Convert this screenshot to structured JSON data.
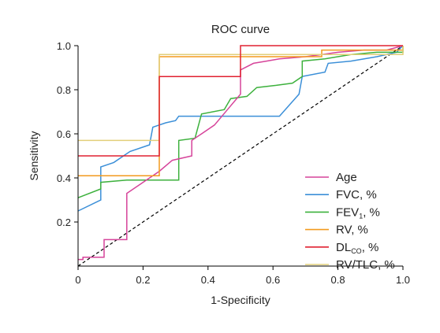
{
  "chart_data": {
    "type": "line",
    "title": "ROC curve",
    "xlabel": "1-Specificity",
    "ylabel": "Sensitivity",
    "xlim": [
      0,
      1
    ],
    "ylim": [
      0,
      1
    ],
    "xticks": [
      "0",
      "0.2",
      "0.4",
      "0.6",
      "0.8",
      "1.0"
    ],
    "yticks": [
      "0.2",
      "0.4",
      "0.6",
      "0.8",
      "1.0"
    ],
    "grid": false,
    "legend_position": "bottom-right",
    "reference_line": {
      "style": "dashed",
      "color": "#000000",
      "points": [
        [
          0,
          0
        ],
        [
          1,
          1
        ]
      ]
    },
    "series": [
      {
        "name": "Age",
        "color": "#d6449a",
        "points": [
          [
            0,
            0.03
          ],
          [
            0.015,
            0.03
          ],
          [
            0.015,
            0.04
          ],
          [
            0.08,
            0.04
          ],
          [
            0.08,
            0.12
          ],
          [
            0.15,
            0.12
          ],
          [
            0.15,
            0.33
          ],
          [
            0.2,
            0.38
          ],
          [
            0.25,
            0.43
          ],
          [
            0.29,
            0.48
          ],
          [
            0.35,
            0.5
          ],
          [
            0.35,
            0.57
          ],
          [
            0.38,
            0.6
          ],
          [
            0.42,
            0.64
          ],
          [
            0.46,
            0.71
          ],
          [
            0.5,
            0.78
          ],
          [
            0.5,
            0.89
          ],
          [
            0.54,
            0.92
          ],
          [
            0.58,
            0.93
          ],
          [
            0.62,
            0.94
          ],
          [
            0.7,
            0.95
          ],
          [
            0.75,
            0.96
          ],
          [
            0.8,
            0.97
          ],
          [
            0.88,
            0.98
          ],
          [
            0.95,
            0.98
          ],
          [
            1,
            1
          ]
        ]
      },
      {
        "name": "FVC, %",
        "color": "#3b8fd8",
        "points": [
          [
            0,
            0.25
          ],
          [
            0.07,
            0.3
          ],
          [
            0.07,
            0.45
          ],
          [
            0.11,
            0.47
          ],
          [
            0.16,
            0.52
          ],
          [
            0.22,
            0.55
          ],
          [
            0.23,
            0.63
          ],
          [
            0.27,
            0.65
          ],
          [
            0.3,
            0.66
          ],
          [
            0.31,
            0.68
          ],
          [
            0.4,
            0.68
          ],
          [
            0.62,
            0.68
          ],
          [
            0.68,
            0.78
          ],
          [
            0.69,
            0.86
          ],
          [
            0.76,
            0.88
          ],
          [
            0.77,
            0.92
          ],
          [
            0.84,
            0.93
          ],
          [
            0.92,
            0.95
          ],
          [
            0.98,
            0.97
          ],
          [
            1,
            1
          ]
        ]
      },
      {
        "name": "FEV₁, %",
        "color": "#3db13d",
        "points": [
          [
            0,
            0.31
          ],
          [
            0.07,
            0.35
          ],
          [
            0.07,
            0.38
          ],
          [
            0.15,
            0.39
          ],
          [
            0.25,
            0.39
          ],
          [
            0.31,
            0.39
          ],
          [
            0.31,
            0.57
          ],
          [
            0.36,
            0.58
          ],
          [
            0.38,
            0.69
          ],
          [
            0.45,
            0.71
          ],
          [
            0.47,
            0.76
          ],
          [
            0.52,
            0.77
          ],
          [
            0.55,
            0.81
          ],
          [
            0.61,
            0.82
          ],
          [
            0.66,
            0.83
          ],
          [
            0.69,
            0.86
          ],
          [
            0.69,
            0.93
          ],
          [
            0.76,
            0.94
          ],
          [
            0.84,
            0.96
          ],
          [
            0.92,
            0.97
          ],
          [
            1,
            0.97
          ],
          [
            1,
            1
          ]
        ]
      },
      {
        "name": "RV, %",
        "color": "#f39a1e",
        "points": [
          [
            0,
            0.41
          ],
          [
            0.25,
            0.41
          ],
          [
            0.25,
            0.95
          ],
          [
            0.75,
            0.95
          ],
          [
            0.75,
            0.98
          ],
          [
            1,
            0.98
          ],
          [
            1,
            1
          ]
        ]
      },
      {
        "name": "DLCO, %",
        "color": "#e02030",
        "points": [
          [
            0,
            0.5
          ],
          [
            0.25,
            0.5
          ],
          [
            0.25,
            0.86
          ],
          [
            0.5,
            0.86
          ],
          [
            0.5,
            1
          ],
          [
            1,
            1
          ]
        ]
      },
      {
        "name": "RV/TLC, %",
        "color": "#e2cf7a",
        "points": [
          [
            0,
            0.57
          ],
          [
            0.25,
            0.57
          ],
          [
            0.25,
            0.96
          ],
          [
            1,
            0.96
          ],
          [
            1,
            1
          ]
        ]
      }
    ],
    "legend": [
      {
        "main": "Age",
        "sub": "",
        "tail": ""
      },
      {
        "main": "FVC, %",
        "sub": "",
        "tail": ""
      },
      {
        "main": "FEV",
        "sub": "1",
        "tail": ", %"
      },
      {
        "main": "RV, %",
        "sub": "",
        "tail": ""
      },
      {
        "main": "DL",
        "sub": "CO",
        "tail": ", %"
      },
      {
        "main": "RV/TLC, %",
        "sub": "",
        "tail": ""
      }
    ]
  }
}
